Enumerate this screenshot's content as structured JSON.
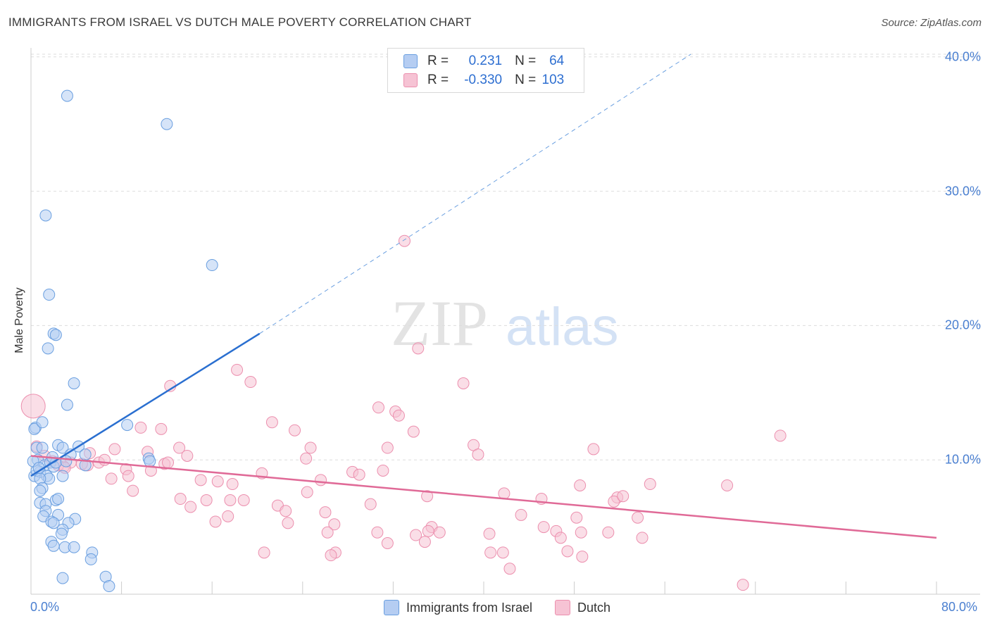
{
  "title": "IMMIGRANTS FROM ISRAEL VS DUTCH MALE POVERTY CORRELATION CHART",
  "source": "Source: ZipAtlas.com",
  "watermark": {
    "zip": "ZIP",
    "atlas": "atlas"
  },
  "legend": {
    "rows": [
      {
        "r_label": "R = ",
        "r_value": "0.231",
        "n_label": "N = ",
        "n_value": "64"
      },
      {
        "r_label": "R = ",
        "r_value": "-0.330",
        "n_label": "N = ",
        "n_value": "103"
      }
    ]
  },
  "colors": {
    "israel": "#6a9fe0",
    "israel_fill": "#b5cdf2",
    "israel_line": "#2a6fd0",
    "dutch": "#ec8fae",
    "dutch_fill": "#f6c3d4",
    "dutch_line": "#e06a97",
    "tick_text": "#4a7fd0",
    "grid": "#dddddd"
  },
  "chart_data": {
    "type": "scatter",
    "title": "IMMIGRANTS FROM ISRAEL VS DUTCH MALE POVERTY CORRELATION CHART",
    "xlabel": "",
    "ylabel": "Male Poverty",
    "xlim": [
      0,
      80
    ],
    "ylim": [
      0,
      42
    ],
    "x_tick_labels": [
      "0.0%",
      "80.0%"
    ],
    "y_ticks": [
      {
        "value": 10,
        "label": "10.0%"
      },
      {
        "value": 20,
        "label": "20.0%"
      },
      {
        "value": 30,
        "label": "30.0%"
      },
      {
        "value": 40,
        "label": "40.0%"
      }
    ],
    "grid": "horizontal dashed",
    "legend_position": "bottom",
    "series": [
      {
        "name": "Immigrants from Israel",
        "color": "#6a9fe0",
        "trend": {
          "x1": 0,
          "y1": 8.8,
          "x2": 20.2,
          "y2": 19.4,
          "dashed_to_x": 58.3,
          "dashed_to_y": 40.2
        },
        "points": [
          [
            3.2,
            37.1
          ],
          [
            12.0,
            35.0
          ],
          [
            1.3,
            28.2
          ],
          [
            16.0,
            24.5
          ],
          [
            1.6,
            22.3
          ],
          [
            2.0,
            19.4
          ],
          [
            2.2,
            19.3
          ],
          [
            1.5,
            18.3
          ],
          [
            3.8,
            15.7
          ],
          [
            3.2,
            14.1
          ],
          [
            8.5,
            12.6
          ],
          [
            0.4,
            12.4
          ],
          [
            0.3,
            12.3
          ],
          [
            1.0,
            12.8
          ],
          [
            0.5,
            10.9
          ],
          [
            1.0,
            10.9
          ],
          [
            2.4,
            11.1
          ],
          [
            2.8,
            10.9
          ],
          [
            4.2,
            11.0
          ],
          [
            3.5,
            10.4
          ],
          [
            4.8,
            10.4
          ],
          [
            0.6,
            10.0
          ],
          [
            1.2,
            9.6
          ],
          [
            0.8,
            9.1
          ],
          [
            0.3,
            8.8
          ],
          [
            0.5,
            9.2
          ],
          [
            1.7,
            9.8
          ],
          [
            2.0,
            9.5
          ],
          [
            2.2,
            9.8
          ],
          [
            4.8,
            9.6
          ],
          [
            10.4,
            10.1
          ],
          [
            10.5,
            9.9
          ],
          [
            1.4,
            8.8
          ],
          [
            1.6,
            8.6
          ],
          [
            0.8,
            8.6
          ],
          [
            2.8,
            8.8
          ],
          [
            1.0,
            7.9
          ],
          [
            0.8,
            7.7
          ],
          [
            2.2,
            7.0
          ],
          [
            2.4,
            7.1
          ],
          [
            0.8,
            6.8
          ],
          [
            1.3,
            6.7
          ],
          [
            1.3,
            6.2
          ],
          [
            2.4,
            5.9
          ],
          [
            1.1,
            5.8
          ],
          [
            3.9,
            5.6
          ],
          [
            1.8,
            5.4
          ],
          [
            2.0,
            5.3
          ],
          [
            3.3,
            5.3
          ],
          [
            2.8,
            4.8
          ],
          [
            2.7,
            4.5
          ],
          [
            1.8,
            3.9
          ],
          [
            2.0,
            3.6
          ],
          [
            3.0,
            3.5
          ],
          [
            3.8,
            3.5
          ],
          [
            5.4,
            3.1
          ],
          [
            5.3,
            2.6
          ],
          [
            2.8,
            1.2
          ],
          [
            6.6,
            1.3
          ],
          [
            6.9,
            0.6
          ],
          [
            0.2,
            9.9
          ],
          [
            0.7,
            9.4
          ],
          [
            1.9,
            10.2
          ],
          [
            3.1,
            9.9
          ]
        ]
      },
      {
        "name": "Dutch",
        "color": "#ec8fae",
        "trend": {
          "x1": 0,
          "y1": 10.3,
          "x2": 80,
          "y2": 4.2
        },
        "points": [
          [
            0.2,
            14.0
          ],
          [
            33.0,
            26.3
          ],
          [
            34.2,
            18.3
          ],
          [
            18.2,
            16.7
          ],
          [
            12.3,
            15.5
          ],
          [
            19.4,
            15.8
          ],
          [
            38.2,
            15.7
          ],
          [
            30.7,
            13.9
          ],
          [
            32.2,
            13.6
          ],
          [
            32.5,
            13.3
          ],
          [
            21.3,
            12.8
          ],
          [
            9.7,
            12.4
          ],
          [
            11.5,
            12.3
          ],
          [
            23.3,
            12.2
          ],
          [
            33.8,
            12.1
          ],
          [
            66.2,
            11.8
          ],
          [
            39.1,
            11.1
          ],
          [
            24.7,
            10.9
          ],
          [
            31.5,
            10.9
          ],
          [
            49.7,
            10.8
          ],
          [
            0.5,
            11.0
          ],
          [
            13.1,
            10.9
          ],
          [
            7.4,
            10.8
          ],
          [
            5.2,
            10.5
          ],
          [
            10.3,
            10.6
          ],
          [
            13.8,
            10.3
          ],
          [
            24.3,
            10.1
          ],
          [
            39.5,
            10.4
          ],
          [
            6.0,
            9.8
          ],
          [
            11.8,
            9.7
          ],
          [
            5.0,
            9.6
          ],
          [
            3.5,
            9.8
          ],
          [
            2.9,
            9.5
          ],
          [
            4.5,
            9.7
          ],
          [
            10.6,
            9.2
          ],
          [
            8.4,
            9.3
          ],
          [
            20.4,
            9.0
          ],
          [
            28.4,
            9.1
          ],
          [
            29.0,
            8.9
          ],
          [
            31.1,
            9.2
          ],
          [
            7.1,
            8.6
          ],
          [
            8.6,
            8.8
          ],
          [
            15.0,
            8.5
          ],
          [
            16.5,
            8.4
          ],
          [
            17.8,
            8.2
          ],
          [
            25.6,
            8.5
          ],
          [
            48.5,
            8.1
          ],
          [
            54.7,
            8.2
          ],
          [
            61.5,
            8.1
          ],
          [
            9.0,
            7.7
          ],
          [
            24.4,
            7.6
          ],
          [
            35.0,
            7.3
          ],
          [
            41.8,
            7.5
          ],
          [
            13.2,
            7.1
          ],
          [
            15.5,
            7.0
          ],
          [
            17.6,
            7.0
          ],
          [
            18.8,
            7.0
          ],
          [
            30.0,
            6.7
          ],
          [
            21.8,
            6.6
          ],
          [
            14.1,
            6.5
          ],
          [
            22.5,
            6.2
          ],
          [
            26.0,
            6.1
          ],
          [
            43.3,
            5.9
          ],
          [
            51.8,
            7.2
          ],
          [
            51.5,
            6.9
          ],
          [
            52.3,
            7.3
          ],
          [
            17.4,
            5.8
          ],
          [
            16.3,
            5.4
          ],
          [
            22.7,
            5.3
          ],
          [
            48.2,
            5.7
          ],
          [
            53.6,
            5.7
          ],
          [
            26.8,
            5.2
          ],
          [
            26.2,
            4.6
          ],
          [
            35.4,
            5.0
          ],
          [
            35.1,
            4.7
          ],
          [
            36.1,
            4.6
          ],
          [
            40.5,
            4.5
          ],
          [
            45.3,
            5.0
          ],
          [
            46.4,
            4.7
          ],
          [
            48.6,
            4.6
          ],
          [
            30.6,
            4.6
          ],
          [
            34.0,
            4.4
          ],
          [
            46.8,
            4.2
          ],
          [
            51.0,
            4.6
          ],
          [
            54.0,
            4.2
          ],
          [
            34.8,
            3.9
          ],
          [
            31.5,
            3.8
          ],
          [
            26.9,
            3.1
          ],
          [
            20.6,
            3.1
          ],
          [
            40.6,
            3.1
          ],
          [
            41.7,
            3.1
          ],
          [
            47.4,
            3.2
          ],
          [
            48.7,
            2.8
          ],
          [
            26.5,
            2.9
          ],
          [
            42.3,
            1.9
          ],
          [
            62.9,
            0.7
          ],
          [
            1.2,
            10.3
          ],
          [
            1.9,
            9.9
          ],
          [
            2.4,
            9.6
          ],
          [
            3.0,
            9.4
          ],
          [
            6.5,
            10.0
          ],
          [
            12.1,
            9.8
          ],
          [
            45.1,
            7.1
          ]
        ]
      }
    ]
  },
  "bottom_legend": [
    {
      "label": "Immigrants from Israel"
    },
    {
      "label": "Dutch"
    }
  ]
}
